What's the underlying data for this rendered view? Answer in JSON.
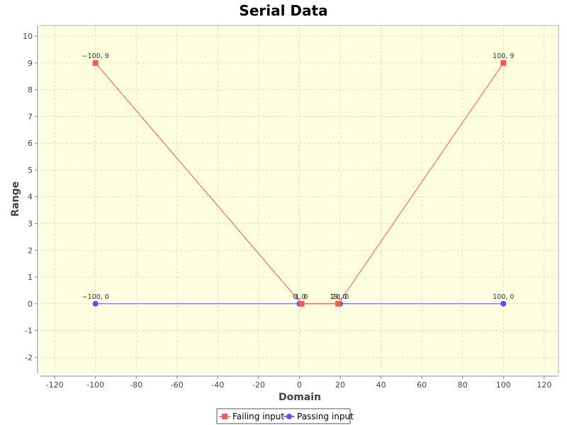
{
  "chart_data": {
    "type": "line",
    "title": "Serial Data",
    "xlabel": "Domain",
    "ylabel": "Range",
    "xlim": [
      -127,
      127
    ],
    "ylim": [
      -2.6,
      10.4
    ],
    "xticks": [
      -120,
      -100,
      -80,
      -60,
      -40,
      -20,
      0,
      20,
      40,
      60,
      80,
      100,
      120
    ],
    "yticks": [
      -2,
      -1,
      0,
      1,
      2,
      3,
      4,
      5,
      6,
      7,
      8,
      9,
      10
    ],
    "xtick_labels": [
      "-120",
      "-100",
      "-80",
      "-60",
      "-40",
      "-20",
      "0",
      "20",
      "40",
      "60",
      "80",
      "100",
      "120"
    ],
    "ytick_labels": [
      "-2",
      "-1",
      "0",
      "1",
      "2",
      "3",
      "4",
      "5",
      "6",
      "7",
      "8",
      "9",
      "10"
    ],
    "grid": true,
    "legend_position": "bottom-center",
    "plot_background": "#fdfde0",
    "grid_color": "#d8d8b8",
    "series": [
      {
        "name": "Failing input",
        "color": "#ff5555",
        "marker": "square",
        "points": [
          {
            "x": -100,
            "y": 9,
            "label": "−100, 9"
          },
          {
            "x": 1,
            "y": 0,
            "label": "1, 0"
          },
          {
            "x": 19,
            "y": 0,
            "label": "19, 0"
          },
          {
            "x": 100,
            "y": 9,
            "label": "100, 9"
          }
        ]
      },
      {
        "name": "Passing input",
        "color": "#5555ff",
        "marker": "circle",
        "points": [
          {
            "x": -100,
            "y": 0,
            "label": "−100, 0"
          },
          {
            "x": 0,
            "y": 0,
            "label": "0, 0"
          },
          {
            "x": 20,
            "y": 0,
            "label": "20, 0"
          },
          {
            "x": 100,
            "y": 0,
            "label": "100, 0"
          }
        ]
      }
    ]
  }
}
